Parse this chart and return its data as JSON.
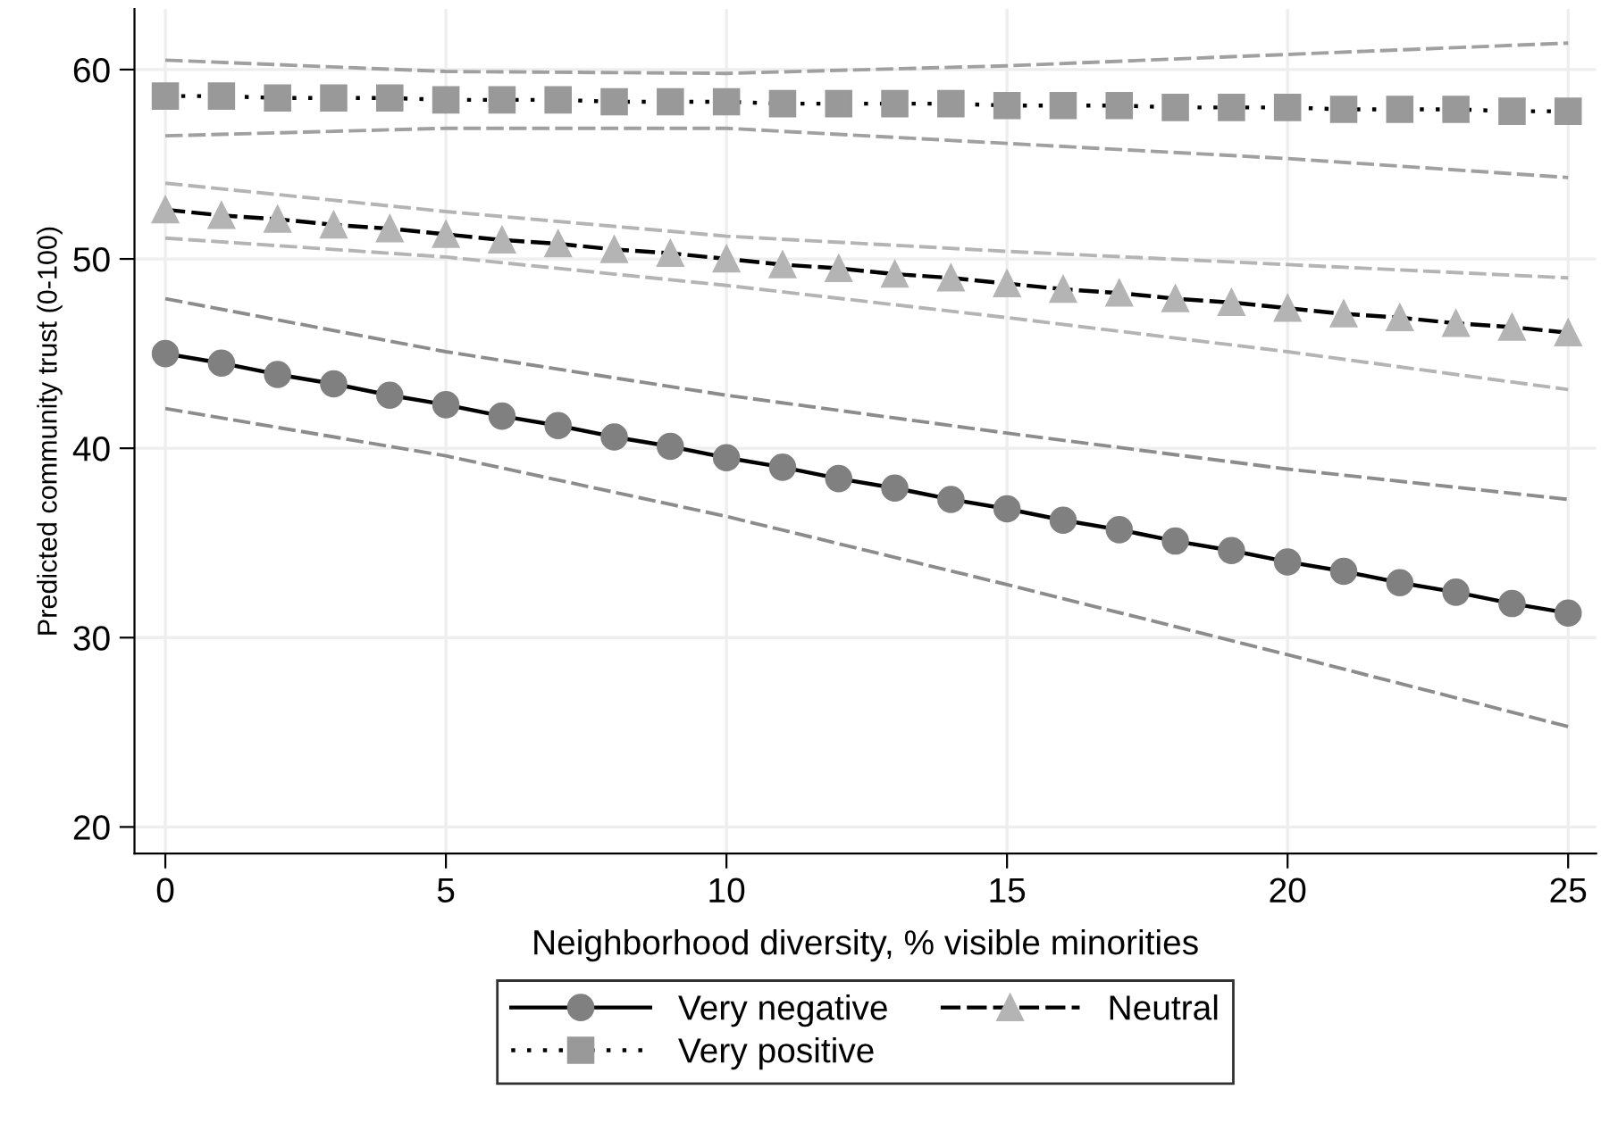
{
  "chart_data": {
    "type": "line",
    "xlabel": "Neighborhood diversity, % visible minorities",
    "ylabel": "Predicted community trust (0-100)",
    "x": [
      0,
      1,
      2,
      3,
      4,
      5,
      6,
      7,
      8,
      9,
      10,
      11,
      12,
      13,
      14,
      15,
      16,
      17,
      18,
      19,
      20,
      21,
      22,
      23,
      24,
      25
    ],
    "xlim": [
      -0.55,
      25.5
    ],
    "xticks": [
      0,
      5,
      10,
      15,
      20,
      25
    ],
    "ylim": [
      18.6,
      63.2
    ],
    "yticks": [
      20,
      30,
      40,
      50,
      60
    ],
    "grid": true,
    "legend": "bottom",
    "series": [
      {
        "name": "Very negative",
        "color": "#808080",
        "marker": "circle",
        "line_style": "solid",
        "values": [
          45.0,
          44.5,
          43.9,
          43.4,
          42.8,
          42.3,
          41.7,
          41.2,
          40.6,
          40.1,
          39.5,
          39.0,
          38.4,
          37.9,
          37.3,
          36.8,
          36.2,
          35.7,
          35.1,
          34.6,
          34.0,
          33.5,
          32.9,
          32.4,
          31.8,
          31.3
        ]
      },
      {
        "name": "Neutral",
        "color": "#b4b4b4",
        "marker": "triangle",
        "line_style": "dashed",
        "values": [
          52.6,
          52.3,
          52.1,
          51.8,
          51.6,
          51.3,
          51.0,
          50.8,
          50.5,
          50.3,
          50.0,
          49.7,
          49.5,
          49.2,
          49.0,
          48.7,
          48.4,
          48.2,
          47.9,
          47.7,
          47.4,
          47.1,
          46.9,
          46.6,
          46.4,
          46.1
        ]
      },
      {
        "name": "Very positive",
        "color": "#999999",
        "marker": "square",
        "line_style": "dotted",
        "values": [
          58.6,
          58.6,
          58.5,
          58.5,
          58.5,
          58.4,
          58.4,
          58.4,
          58.3,
          58.3,
          58.3,
          58.2,
          58.2,
          58.2,
          58.2,
          58.1,
          58.1,
          58.1,
          58.0,
          58.0,
          58.0,
          57.9,
          57.9,
          57.9,
          57.8,
          57.8
        ]
      },
      {
        "color": "#8c8c8c",
        "marker": "none",
        "line_style": "dashed",
        "x": [
          0,
          5,
          10,
          15,
          20,
          25
        ],
        "values": [
          47.9,
          45.1,
          42.8,
          40.8,
          38.9,
          37.3
        ]
      },
      {
        "color": "#8c8c8c",
        "marker": "none",
        "line_style": "dashed",
        "x": [
          0,
          5,
          10,
          15,
          20,
          25
        ],
        "values": [
          42.1,
          39.6,
          36.4,
          32.8,
          29.1,
          25.3
        ]
      },
      {
        "color": "#b4b4b4",
        "marker": "none",
        "line_style": "dashed",
        "x": [
          0,
          5,
          10,
          15,
          20,
          25
        ],
        "values": [
          54.0,
          52.5,
          51.2,
          50.4,
          49.7,
          49.0
        ]
      },
      {
        "color": "#b4b4b4",
        "marker": "none",
        "line_style": "dashed",
        "x": [
          0,
          5,
          10,
          15,
          20,
          25
        ],
        "values": [
          51.1,
          50.1,
          48.6,
          46.9,
          45.1,
          43.1
        ]
      },
      {
        "color": "#a0a0a0",
        "marker": "none",
        "line_style": "dashed",
        "x": [
          0,
          5,
          10,
          15,
          20,
          25
        ],
        "values": [
          60.5,
          59.9,
          59.8,
          60.2,
          60.8,
          61.4
        ]
      },
      {
        "color": "#a0a0a0",
        "marker": "none",
        "line_style": "dashed",
        "x": [
          0,
          5,
          10,
          15,
          20,
          25
        ],
        "values": [
          56.5,
          56.9,
          56.9,
          56.1,
          55.3,
          54.3
        ]
      }
    ]
  }
}
